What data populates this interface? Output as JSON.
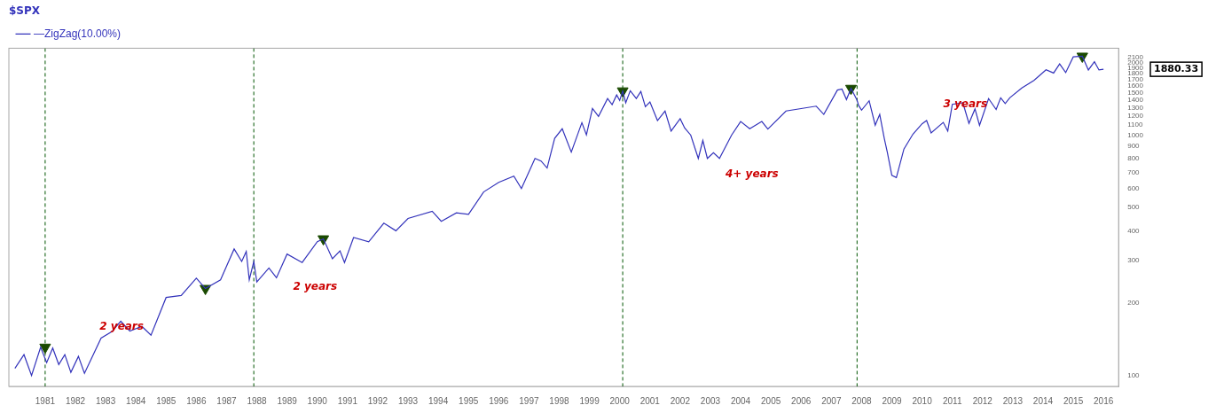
{
  "chart_data": {
    "type": "line",
    "title": "$SPX",
    "legend": "top-left",
    "log": "y",
    "grid": false,
    "x": [
      1980.0,
      1980.3,
      1980.55,
      1980.85,
      1981.05,
      1981.25,
      1981.45,
      1981.65,
      1981.85,
      1982.1,
      1982.3,
      1982.85,
      1983.2,
      1983.5,
      1983.8,
      1984.2,
      1984.5,
      1985.0,
      1985.5,
      1986.0,
      1986.3,
      1986.8,
      1987.0,
      1987.25,
      1987.5,
      1987.65,
      1987.75,
      1987.9,
      1988.0,
      1988.4,
      1988.65,
      1989.0,
      1989.5,
      1990.0,
      1990.2,
      1990.5,
      1990.75,
      1990.9,
      1991.2,
      1991.7,
      1992.2,
      1992.6,
      1993.0,
      1993.8,
      1994.1,
      1994.6,
      1995.0,
      1995.5,
      1996.0,
      1996.5,
      1996.75,
      1997.2,
      1997.4,
      1997.6,
      1997.85,
      1998.1,
      1998.4,
      1998.75,
      1998.9,
      1999.1,
      1999.3,
      1999.6,
      1999.75,
      1999.9,
      2000.0,
      2000.1,
      2000.2,
      2000.35,
      2000.55,
      2000.7,
      2000.85,
      2001.0,
      2001.25,
      2001.5,
      2001.7,
      2002.0,
      2002.15,
      2002.35,
      2002.6,
      2002.75,
      2002.9,
      2003.1,
      2003.3,
      2003.7,
      2004.0,
      2004.3,
      2004.7,
      2004.9,
      2005.5,
      2006.0,
      2006.5,
      2006.75,
      2007.2,
      2007.35,
      2007.5,
      2007.65,
      2007.85,
      2007.9,
      2008.0,
      2008.25,
      2008.45,
      2008.6,
      2008.75,
      2008.85,
      2009.0,
      2009.15,
      2009.4,
      2009.7,
      2010.0,
      2010.15,
      2010.3,
      2010.7,
      2010.85,
      2011.0,
      2011.35,
      2011.55,
      2011.75,
      2011.9,
      2012.2,
      2012.45,
      2012.6,
      2012.75,
      2012.9,
      2013.3,
      2013.7,
      2014.1,
      2014.35,
      2014.55,
      2014.75,
      2015.0,
      2015.3,
      2015.5,
      2015.7,
      2015.85,
      2016.0
    ],
    "series": [
      {
        "name": "—ZigZag(10.00%)",
        "color": "#3333bb",
        "values": [
          107,
          122,
          100,
          131,
          113,
          130,
          111,
          122,
          103,
          120,
          102,
          143,
          152,
          168,
          153,
          160,
          147,
          211,
          215,
          254,
          230,
          250,
          285,
          336,
          298,
          328,
          250,
          298,
          245,
          280,
          255,
          320,
          295,
          360,
          370,
          306,
          330,
          295,
          375,
          360,
          430,
          400,
          450,
          482,
          438,
          475,
          468,
          580,
          636,
          675,
          599,
          800,
          780,
          730,
          970,
          1063,
          850,
          1127,
          1003,
          1290,
          1197,
          1420,
          1340,
          1469,
          1394,
          1527,
          1363,
          1530,
          1420,
          1520,
          1314,
          1373,
          1150,
          1259,
          1040,
          1170,
          1070,
          1000,
          800,
          950,
          800,
          845,
          800,
          1000,
          1140,
          1063,
          1140,
          1060,
          1260,
          1290,
          1320,
          1220,
          1540,
          1555,
          1406,
          1565,
          1400,
          1330,
          1270,
          1390,
          1100,
          1220,
          970,
          850,
          680,
          666,
          875,
          1010,
          1115,
          1150,
          1022,
          1130,
          1040,
          1343,
          1363,
          1119,
          1285,
          1099,
          1419,
          1278,
          1430,
          1353,
          1430,
          1570,
          1690,
          1870,
          1813,
          1978,
          1821,
          2117,
          2130,
          1867,
          2020,
          1867,
          1880
        ]
      }
    ],
    "arrows": {
      "x": [
        1981.0,
        1986.3,
        1990.2,
        2000.1,
        2007.65,
        2015.3
      ],
      "y": [
        131,
        230,
        370,
        1527,
        1565,
        2130
      ],
      "color": "#1a4a00",
      "marker": "triangle_down"
    },
    "vlines": {
      "x": [
        1981.0,
        1987.9,
        2000.1,
        2007.85
      ],
      "color": "#005500",
      "line_style": "dashed"
    },
    "annotations": [
      {
        "text": "2 years",
        "x": 1982.8,
        "y": 155,
        "color": "#cc0000"
      },
      {
        "text": "2 years",
        "x": 1989.2,
        "y": 228,
        "color": "#cc0000"
      },
      {
        "text": "4+ years",
        "x": 2003.5,
        "y": 670,
        "color": "#cc0000"
      },
      {
        "text": "3 years",
        "x": 2010.7,
        "y": 1310,
        "color": "#cc0000"
      }
    ],
    "price_label": {
      "text": "1880.33",
      "y": 1880
    },
    "xlim": [
      1979.8,
      2016.5
    ],
    "xticks": [
      1981,
      1982,
      1983,
      1984,
      1985,
      1986,
      1987,
      1988,
      1989,
      1990,
      1991,
      1992,
      1993,
      1994,
      1995,
      1996,
      1997,
      1998,
      1999,
      2000,
      2001,
      2002,
      2003,
      2004,
      2005,
      2006,
      2007,
      2008,
      2009,
      2010,
      2011,
      2012,
      2013,
      2014,
      2015,
      2016
    ],
    "ylim": [
      90,
      2300
    ],
    "yticks": [
      100,
      200,
      300,
      400,
      500,
      600,
      700,
      800,
      900,
      1000,
      1100,
      1200,
      1300,
      1400,
      1500,
      1600,
      1700,
      1800,
      1900,
      2000,
      2100
    ]
  }
}
